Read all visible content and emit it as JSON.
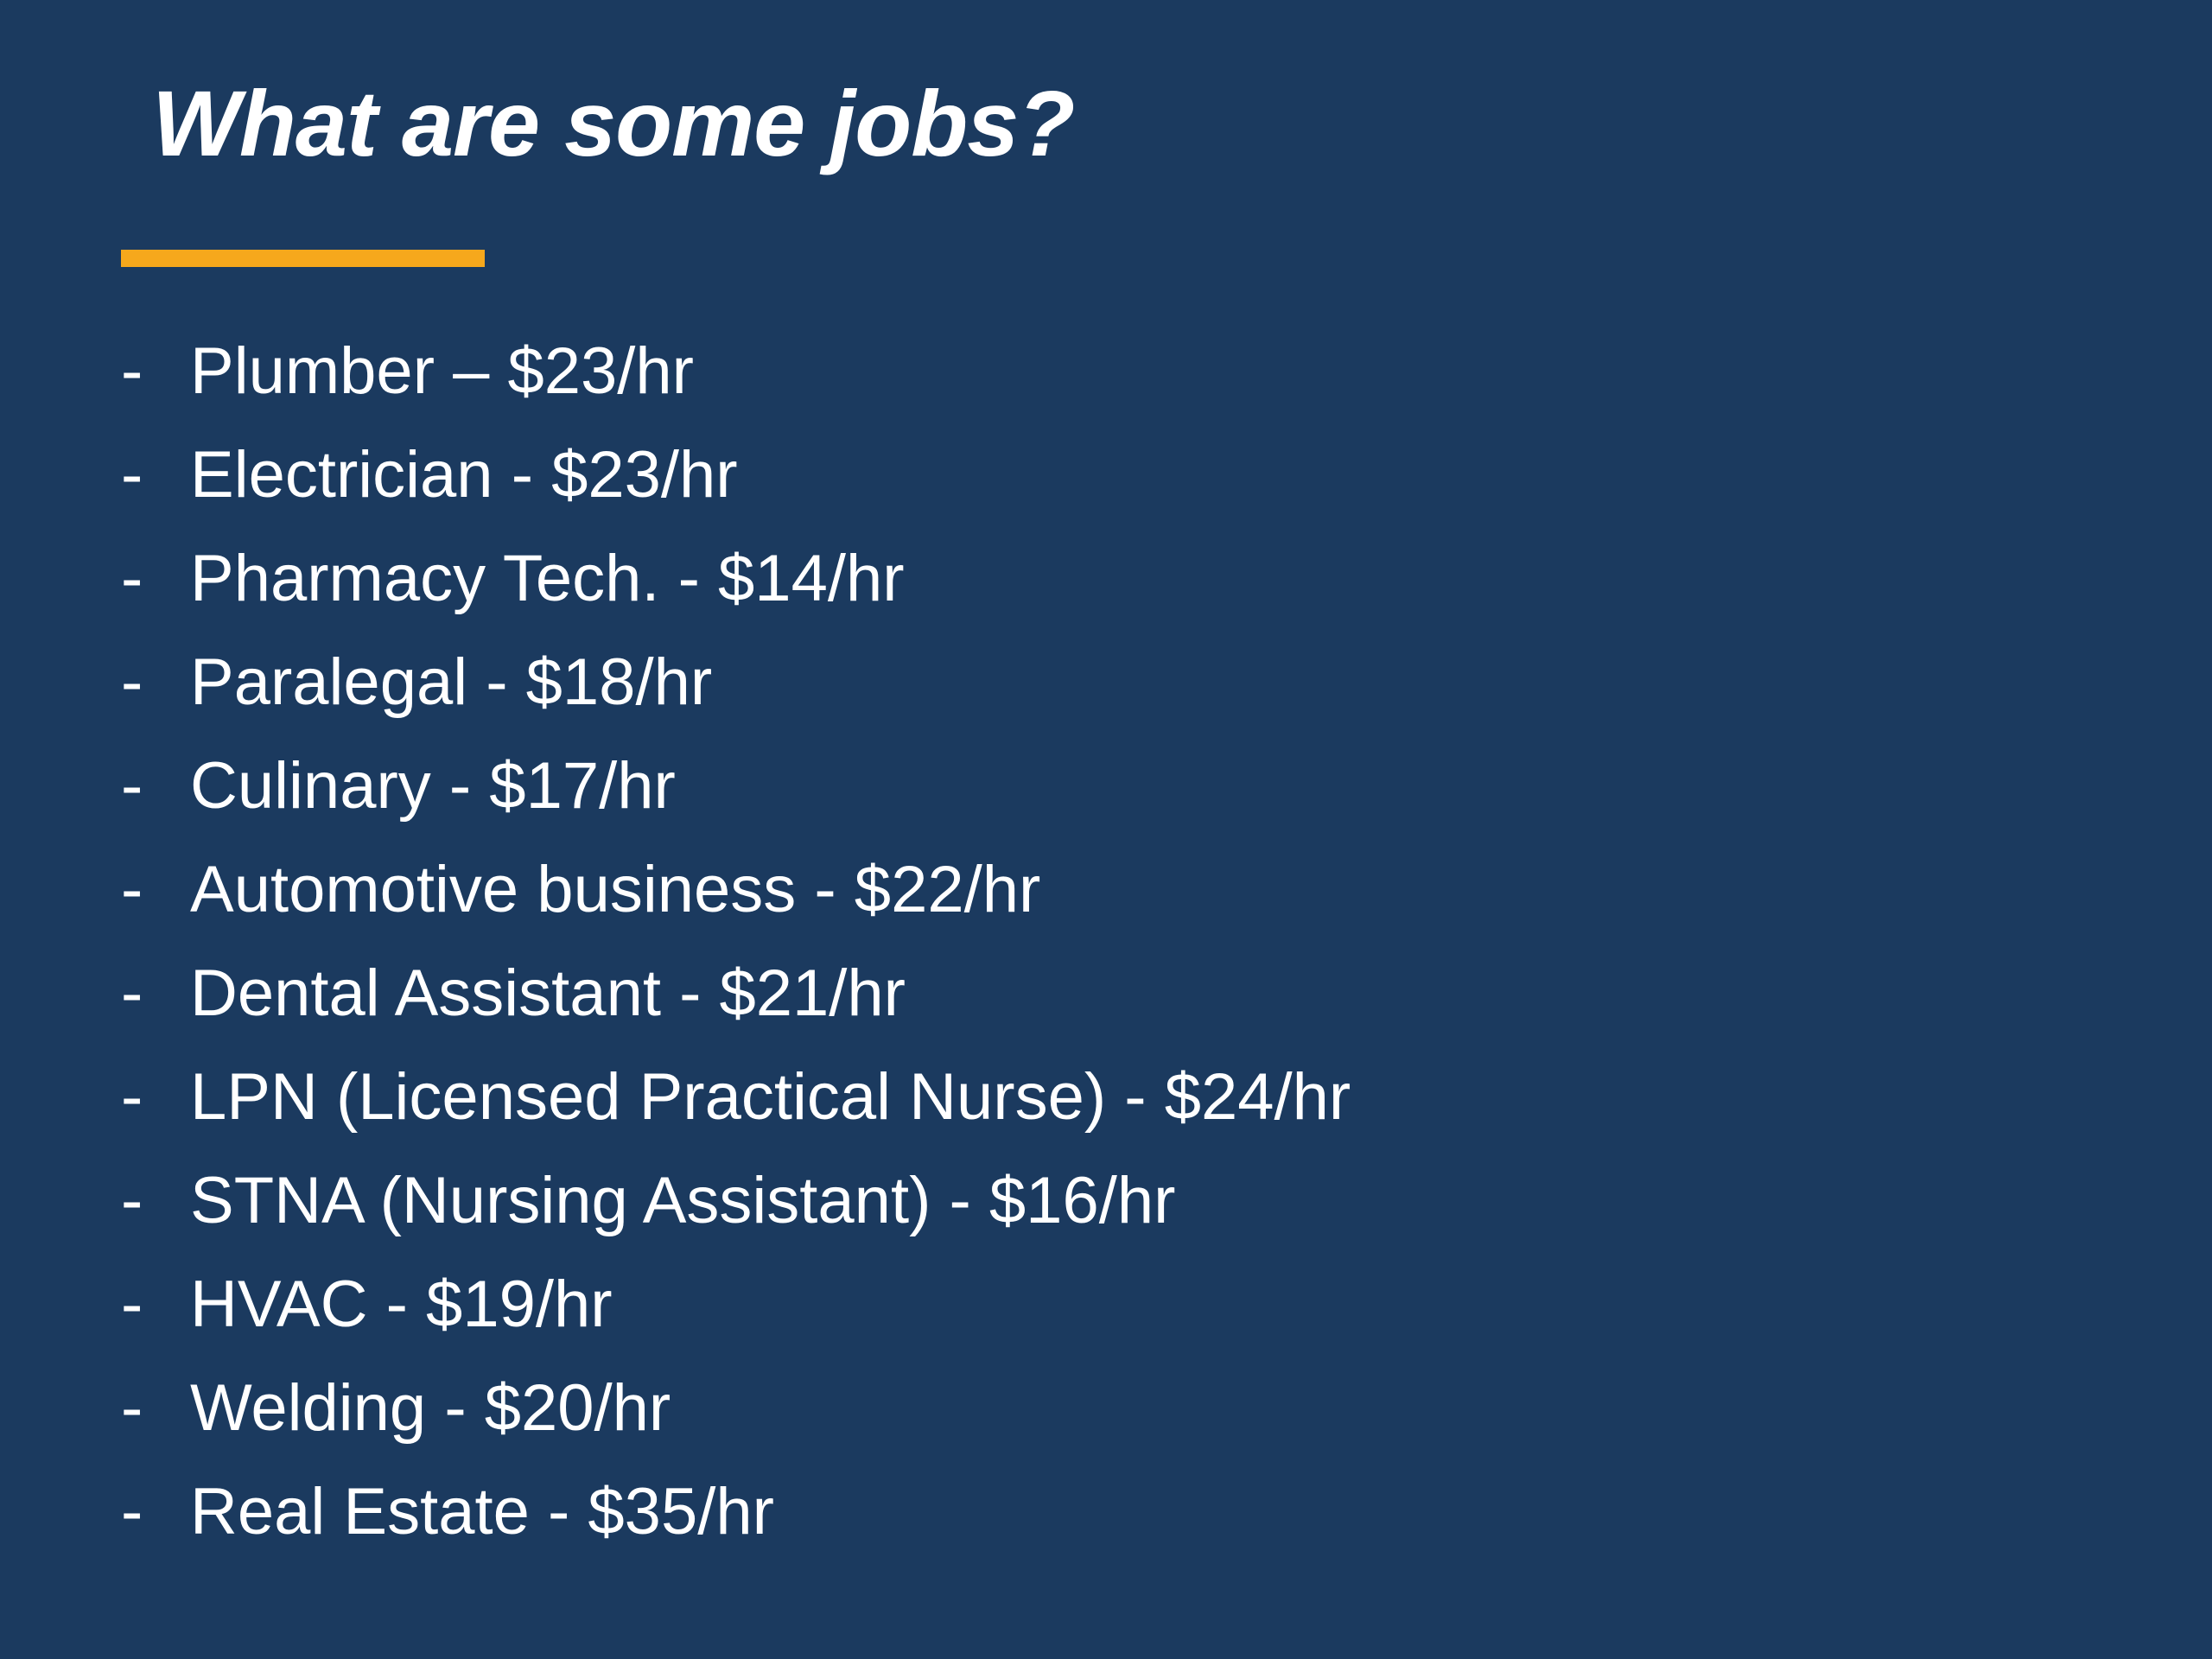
{
  "slide": {
    "background_color": "#1B3A5F",
    "text_color": "#FFFFFF",
    "accent_color": "#F6A81C",
    "title": "What are some jobs?",
    "list": {
      "bullet": "-",
      "items": [
        "Plumber – $23/hr",
        "Electrician - $23/hr",
        "Pharmacy Tech. - $14/hr",
        "Paralegal - $18/hr",
        "Culinary - $17/hr",
        "Automotive business - $22/hr",
        "Dental Assistant - $21/hr",
        "LPN (Licensed Practical Nurse) - $24/hr",
        "STNA (Nursing Assistant) - $16/hr",
        "HVAC - $19/hr",
        "Welding - $20/hr",
        "Real Estate - $35/hr"
      ]
    }
  }
}
